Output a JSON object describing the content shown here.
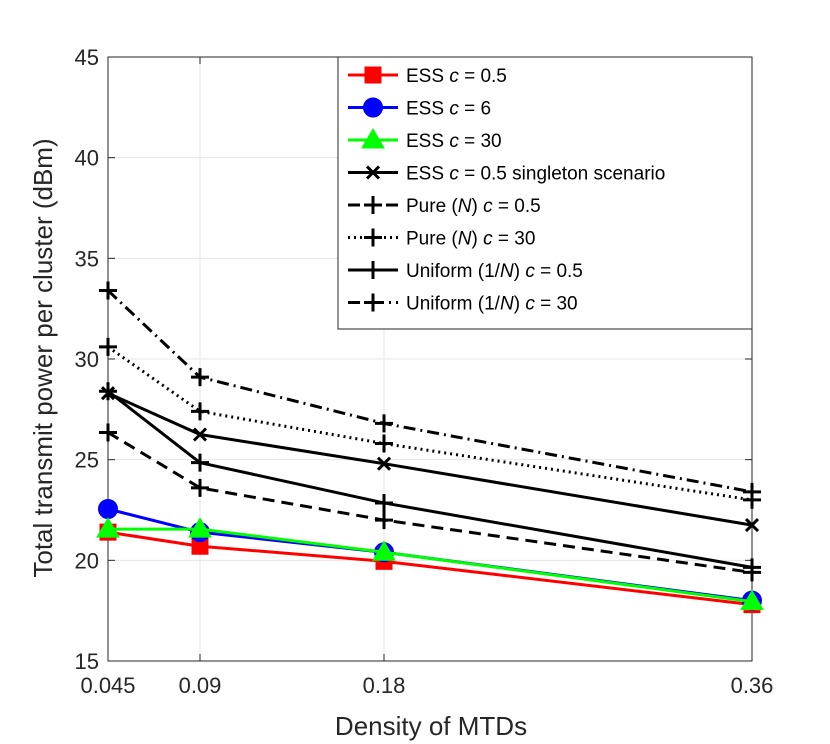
{
  "chart_data": {
    "type": "line",
    "title": "",
    "xlabel": "Density of MTDs",
    "ylabel": "Total transmit power per cluster (dBm)",
    "x": [
      0.045,
      0.09,
      0.18,
      0.36
    ],
    "x_tick_labels": [
      "0.045",
      "0.09",
      "0.18",
      "0.36"
    ],
    "xlim": [
      0.045,
      0.36
    ],
    "ylim": [
      15,
      45
    ],
    "y_ticks": [
      15,
      20,
      25,
      30,
      35,
      40,
      45
    ],
    "y_tick_labels": [
      "15",
      "20",
      "25",
      "30",
      "35",
      "40",
      "45"
    ],
    "grid": true,
    "legend_position": "top-right",
    "series": [
      {
        "name": "ESS c = 0.5",
        "legend_parts": [
          "ESS ",
          "c",
          " = 0.5"
        ],
        "color": "#ff0000",
        "line": "solid",
        "marker": "square",
        "values": [
          21.4,
          20.7,
          19.95,
          17.8
        ]
      },
      {
        "name": "ESS c = 6",
        "legend_parts": [
          "ESS ",
          "c",
          " = 6"
        ],
        "color": "#0000ff",
        "line": "solid",
        "marker": "circle",
        "values": [
          22.55,
          21.4,
          20.4,
          18.0
        ]
      },
      {
        "name": "ESS c = 30",
        "legend_parts": [
          "ESS ",
          "c",
          " = 30"
        ],
        "color": "#00ff00",
        "line": "solid",
        "marker": "triangle",
        "values": [
          21.55,
          21.55,
          20.4,
          17.95
        ]
      },
      {
        "name": "ESS c = 0.5 singleton scenario",
        "legend_parts": [
          "ESS ",
          "c",
          " = 0.5 singleton scenario"
        ],
        "color": "#000000",
        "line": "solid",
        "marker": "x",
        "values": [
          28.3,
          26.25,
          24.8,
          21.75
        ]
      },
      {
        "name": "Pure (N) c = 0.5",
        "legend_parts": [
          "Pure (",
          "N",
          ") ",
          "c",
          " = 0.5"
        ],
        "color": "#000000",
        "line": "dashed",
        "marker": "plus",
        "values": [
          26.35,
          23.6,
          22.0,
          19.4
        ]
      },
      {
        "name": "Pure (N) c = 30",
        "legend_parts": [
          "Pure (",
          "N",
          ") ",
          "c",
          " = 30"
        ],
        "color": "#000000",
        "line": "dotted",
        "marker": "plus",
        "values": [
          30.6,
          27.4,
          25.8,
          23.0
        ]
      },
      {
        "name": "Uniform (1/N) c = 0.5",
        "legend_parts": [
          "Uniform (1/",
          "N",
          ") ",
          "c",
          " = 0.5"
        ],
        "color": "#000000",
        "line": "solid",
        "marker": "plus",
        "values": [
          28.4,
          24.85,
          22.85,
          19.65
        ]
      },
      {
        "name": "Uniform (1/N) c = 30",
        "legend_parts": [
          "Uniform (1/",
          "N",
          ") ",
          "c",
          " = 30"
        ],
        "color": "#000000",
        "line": "dashdot",
        "marker": "plus",
        "values": [
          33.4,
          29.1,
          26.8,
          23.4
        ]
      }
    ]
  }
}
